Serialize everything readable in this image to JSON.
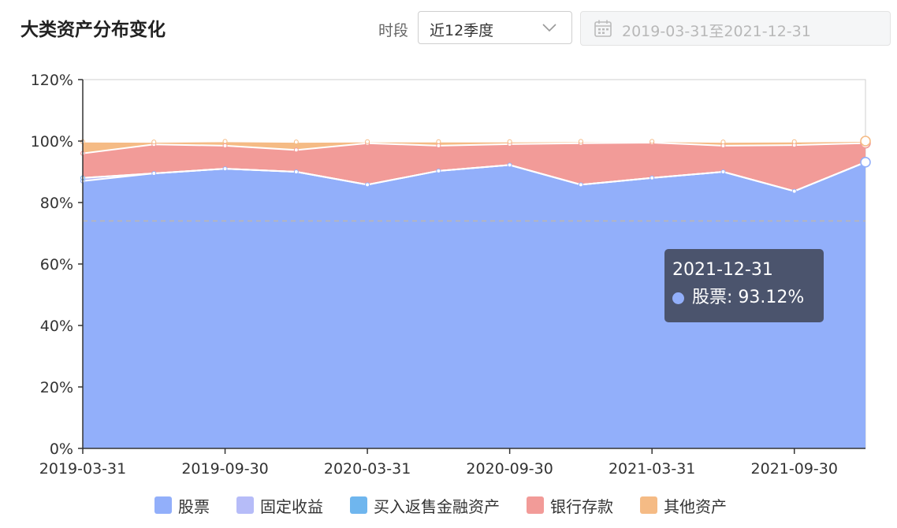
{
  "header": {
    "title": "大类资产分布变化",
    "period_label": "时段",
    "period_value": "近12季度",
    "date_range": "2019-03-31至2021-12-31"
  },
  "colors": {
    "stock": "#92affa",
    "fixed_income": "#b6bcf8",
    "repo": "#6fb6ee",
    "bank_deposit": "#f29b98",
    "other": "#f5bb85",
    "tooltip_bg": "#454c61"
  },
  "chart_data": {
    "type": "area",
    "stacked": true,
    "x": [
      "2019-03-31",
      "2019-06-30",
      "2019-09-30",
      "2019-12-31",
      "2020-03-31",
      "2020-06-30",
      "2020-09-30",
      "2020-12-31",
      "2021-03-31",
      "2021-06-30",
      "2021-09-30",
      "2021-12-31"
    ],
    "x_tick_labels": [
      "2019-03-31",
      "2019-09-30",
      "2020-03-31",
      "2020-09-30",
      "2021-03-31",
      "2021-09-30"
    ],
    "y_tick_labels": [
      "0%",
      "20%",
      "40%",
      "60%",
      "80%",
      "100%",
      "120%"
    ],
    "ylim": [
      0,
      120
    ],
    "y_unit": "%",
    "reference_line": 74,
    "series": [
      {
        "name": "股票",
        "color": "#92affa",
        "values": [
          87,
          89.5,
          91,
          90,
          85.8,
          90.3,
          92.2,
          85.8,
          88,
          90,
          83.7,
          93.12
        ]
      },
      {
        "name": "固定收益",
        "color": "#b6bcf8",
        "values": [
          1,
          0,
          0,
          0,
          0,
          0,
          0,
          0,
          0,
          0,
          0,
          0
        ]
      },
      {
        "name": "买入返售金融资产",
        "color": "#6fb6ee",
        "values": [
          0,
          0,
          0,
          0,
          0,
          0,
          0,
          0,
          0,
          0,
          0,
          0
        ]
      },
      {
        "name": "银行存款",
        "color": "#f29b98",
        "values": [
          8,
          9.4,
          7.5,
          7.1,
          13.5,
          8.2,
          6.8,
          13.5,
          11.5,
          8.5,
          15,
          6.2
        ]
      },
      {
        "name": "其他资产",
        "color": "#f5bb85",
        "values": [
          3.8,
          0.8,
          1.4,
          2.6,
          0.5,
          1.3,
          0.8,
          0.6,
          0.4,
          1.2,
          1.1,
          0.68
        ]
      }
    ],
    "legend_position": "bottom",
    "tooltip": {
      "date": "2021-12-31",
      "series": "股票",
      "value": "93.12%"
    }
  }
}
